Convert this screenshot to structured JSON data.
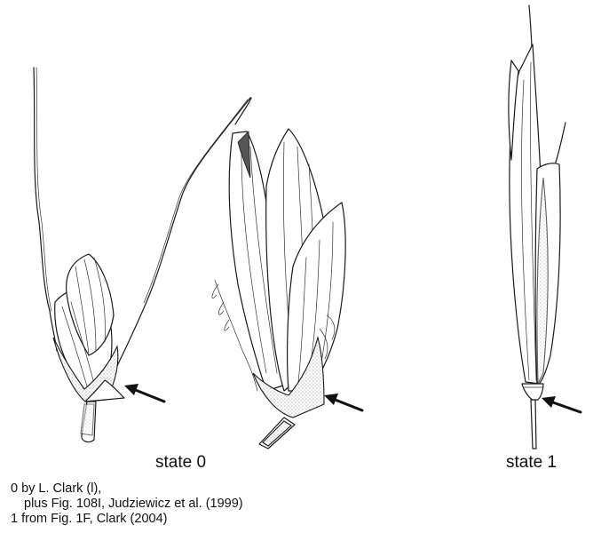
{
  "labels": {
    "state0": "state 0",
    "state1": "state 1"
  },
  "credits": {
    "line1": "0 by L. Clark (l),",
    "line2": "plus Fig. 108I, Judziewicz et al. (1999)",
    "line3": "1 from Fig. 1F, Clark (2004)"
  }
}
